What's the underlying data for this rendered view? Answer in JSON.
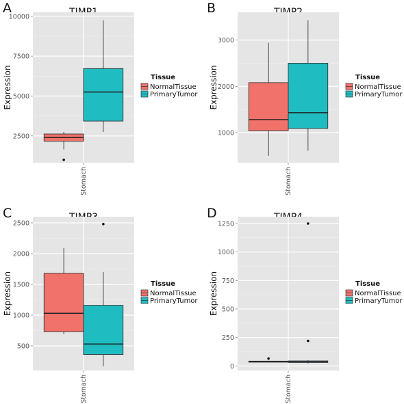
{
  "chart_data": [
    {
      "type": "box",
      "panel_label": "A",
      "title": "TIMP1",
      "ylabel": "Expression",
      "categories": [
        "Stomach"
      ],
      "ylim": [
        820,
        10250
      ],
      "yticks": [
        2500,
        5000,
        7500,
        10000
      ],
      "yticklabels": [
        "2500",
        "5000",
        "7500",
        "10000"
      ],
      "legend": {
        "title": "Tissue",
        "position": "right"
      },
      "series": [
        {
          "name": "NormalTissue",
          "color": "#f1726b",
          "whisker_low": 1650,
          "q1": 2170,
          "median": 2400,
          "q3": 2620,
          "whisker_high": 2750,
          "outliers": [
            1000
          ]
        },
        {
          "name": "PrimaryTumor",
          "color": "#1fbdc1",
          "whisker_low": 2750,
          "q1": 3430,
          "median": 5250,
          "q3": 6720,
          "whisker_high": 9750,
          "outliers": []
        }
      ]
    },
    {
      "type": "box",
      "panel_label": "B",
      "title": "TIMP2",
      "ylabel": "Expression",
      "categories": [
        "Stomach"
      ],
      "ylim": [
        350,
        3600
      ],
      "yticks": [
        1000,
        2000,
        3000
      ],
      "yticklabels": [
        "1000",
        "2000",
        "3000"
      ],
      "legend": {
        "title": "Tissue",
        "position": "right"
      },
      "series": [
        {
          "name": "NormalTissue",
          "color": "#f1726b",
          "whisker_low": 500,
          "q1": 1040,
          "median": 1280,
          "q3": 2080,
          "whisker_high": 2940,
          "outliers": []
        },
        {
          "name": "PrimaryTumor",
          "color": "#1fbdc1",
          "whisker_low": 610,
          "q1": 1090,
          "median": 1430,
          "q3": 2500,
          "whisker_high": 3430,
          "outliers": []
        }
      ]
    },
    {
      "type": "box",
      "panel_label": "C",
      "title": "TIMP3",
      "ylabel": "Expression",
      "categories": [
        "Stomach"
      ],
      "ylim": [
        100,
        2600
      ],
      "yticks": [
        500,
        1000,
        1500,
        2000,
        2500
      ],
      "yticklabels": [
        "500",
        "1000",
        "1500",
        "2000",
        "2500"
      ],
      "legend": {
        "title": "Tissue",
        "position": "right"
      },
      "series": [
        {
          "name": "NormalTissue",
          "color": "#f1726b",
          "whisker_low": 690,
          "q1": 730,
          "median": 1030,
          "q3": 1680,
          "whisker_high": 2090,
          "outliers": []
        },
        {
          "name": "PrimaryTumor",
          "color": "#1fbdc1",
          "whisker_low": 170,
          "q1": 360,
          "median": 530,
          "q3": 1160,
          "whisker_high": 1700,
          "outliers": [
            2480
          ]
        }
      ]
    },
    {
      "type": "box",
      "panel_label": "D",
      "title": "TIMP4",
      "ylabel": "Expression",
      "categories": [
        "Stomach"
      ],
      "ylim": [
        -40,
        1310
      ],
      "yticks": [
        0,
        250,
        500,
        750,
        1000,
        1250
      ],
      "yticklabels": [
        "0",
        "250",
        "500",
        "750",
        "1000",
        "1250"
      ],
      "legend": {
        "title": "Tissue",
        "position": "right"
      },
      "series": [
        {
          "name": "NormalTissue",
          "color": "#f1726b",
          "whisker_low": 32,
          "q1": 34,
          "median": 38,
          "q3": 42,
          "whisker_high": 45,
          "outliers": [
            65
          ]
        },
        {
          "name": "PrimaryTumor",
          "color": "#1fbdc1",
          "whisker_low": 22,
          "q1": 30,
          "median": 36,
          "q3": 44,
          "whisker_high": 50,
          "outliers": [
            220,
            1250
          ]
        }
      ]
    }
  ]
}
